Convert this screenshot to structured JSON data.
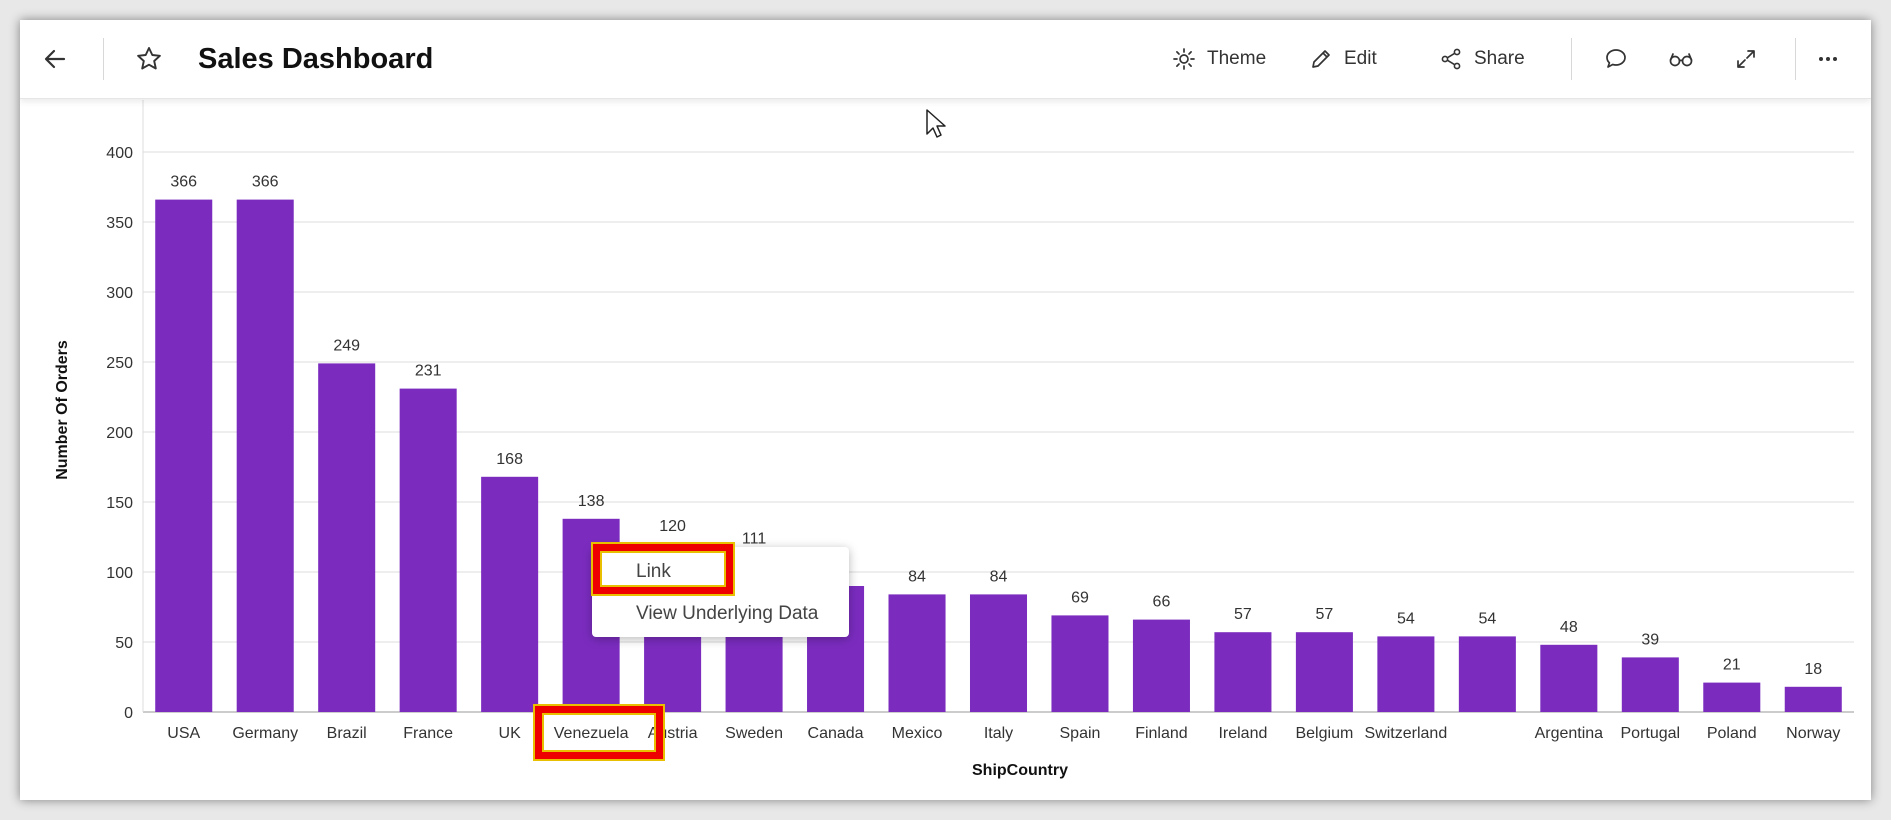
{
  "toolbar": {
    "title": "Sales Dashboard",
    "theme_label": "Theme",
    "edit_label": "Edit",
    "share_label": "Share"
  },
  "icons": [
    "back-arrow-icon",
    "star-icon",
    "sun-icon",
    "pencil-icon",
    "share-icon",
    "comment-icon",
    "glasses-icon",
    "expand-icon",
    "more-icon"
  ],
  "context_menu": {
    "items": [
      "Link",
      "View Underlying Data"
    ]
  },
  "colors": {
    "bar": "#7b2cbf",
    "highlight": "#ee0000"
  },
  "chart_data": {
    "type": "bar",
    "xlabel": "ShipCountry",
    "ylabel": "Number Of Orders",
    "ylim": [
      0,
      400
    ],
    "yticks": [
      0,
      50,
      100,
      150,
      200,
      250,
      300,
      350,
      400
    ],
    "grid": true,
    "categories": [
      "USA",
      "Germany",
      "Brazil",
      "France",
      "UK",
      "Venezuela",
      "Austria",
      "Sweden",
      "Canada",
      "Mexico",
      "Italy",
      "Spain",
      "Finland",
      "Ireland",
      "Belgium",
      "Switzerland",
      "",
      "Argentina",
      "Portugal",
      "Poland",
      "Norway"
    ],
    "values": [
      366,
      366,
      249,
      231,
      168,
      138,
      120,
      111,
      90,
      84,
      84,
      69,
      66,
      57,
      57,
      54,
      54,
      48,
      39,
      21,
      18
    ],
    "data_labels": [
      "366",
      "366",
      "249",
      "231",
      "168",
      "138",
      "120",
      "111",
      "",
      "84",
      "84",
      "69",
      "66",
      "57",
      "57",
      "54",
      "54",
      "48",
      "39",
      "21",
      "18"
    ]
  }
}
